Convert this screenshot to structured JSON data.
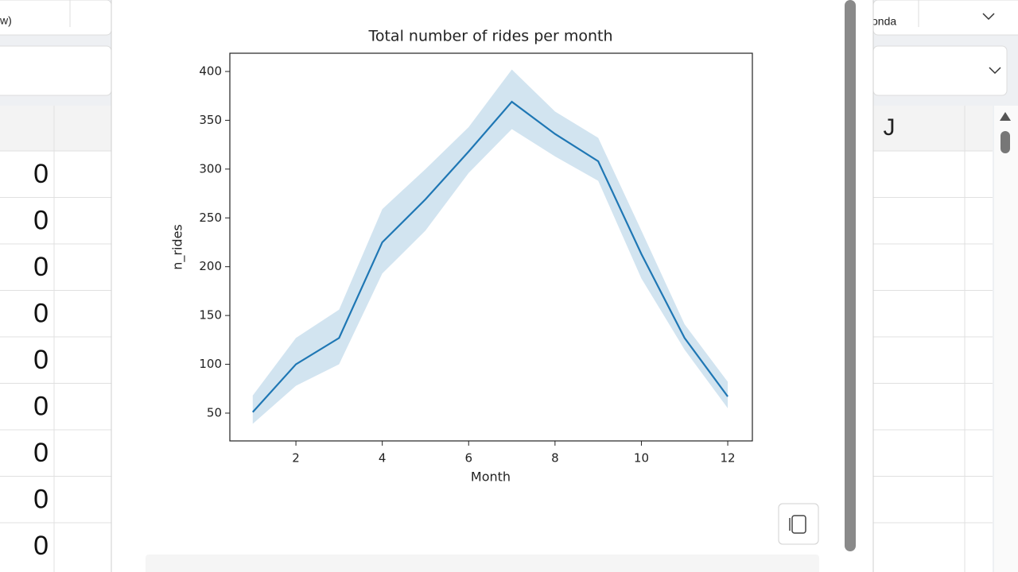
{
  "ui": {
    "left_tab": "w)",
    "right_tab": "onda",
    "column_header": "J",
    "cells": [
      0,
      0,
      0,
      0,
      0,
      0,
      0,
      0,
      0
    ]
  },
  "chart_data": {
    "type": "line",
    "title": "Total number of rides per month",
    "x_label": "Month",
    "y_label": "n_rides",
    "x": [
      1,
      2,
      3,
      4,
      5,
      6,
      7,
      8,
      9,
      10,
      11,
      12
    ],
    "series": [
      {
        "color": "#1f77b4",
        "values": [
          51,
          100,
          127,
          225,
          269,
          318,
          369,
          336,
          308,
          213,
          127,
          67
        ],
        "lower": [
          39,
          78,
          100,
          193,
          237,
          296,
          341,
          313,
          288,
          188,
          115,
          55
        ],
        "upper": [
          68,
          127,
          156,
          259,
          300,
          343,
          402,
          359,
          332,
          237,
          141,
          82
        ]
      }
    ],
    "xlim": [
      0.47,
      12.57
    ],
    "ylim": [
      21.5,
      418.7
    ],
    "xticks": [
      2,
      4,
      6,
      8,
      10,
      12
    ],
    "yticks": [
      50,
      100,
      150,
      200,
      250,
      300,
      350,
      400
    ]
  }
}
